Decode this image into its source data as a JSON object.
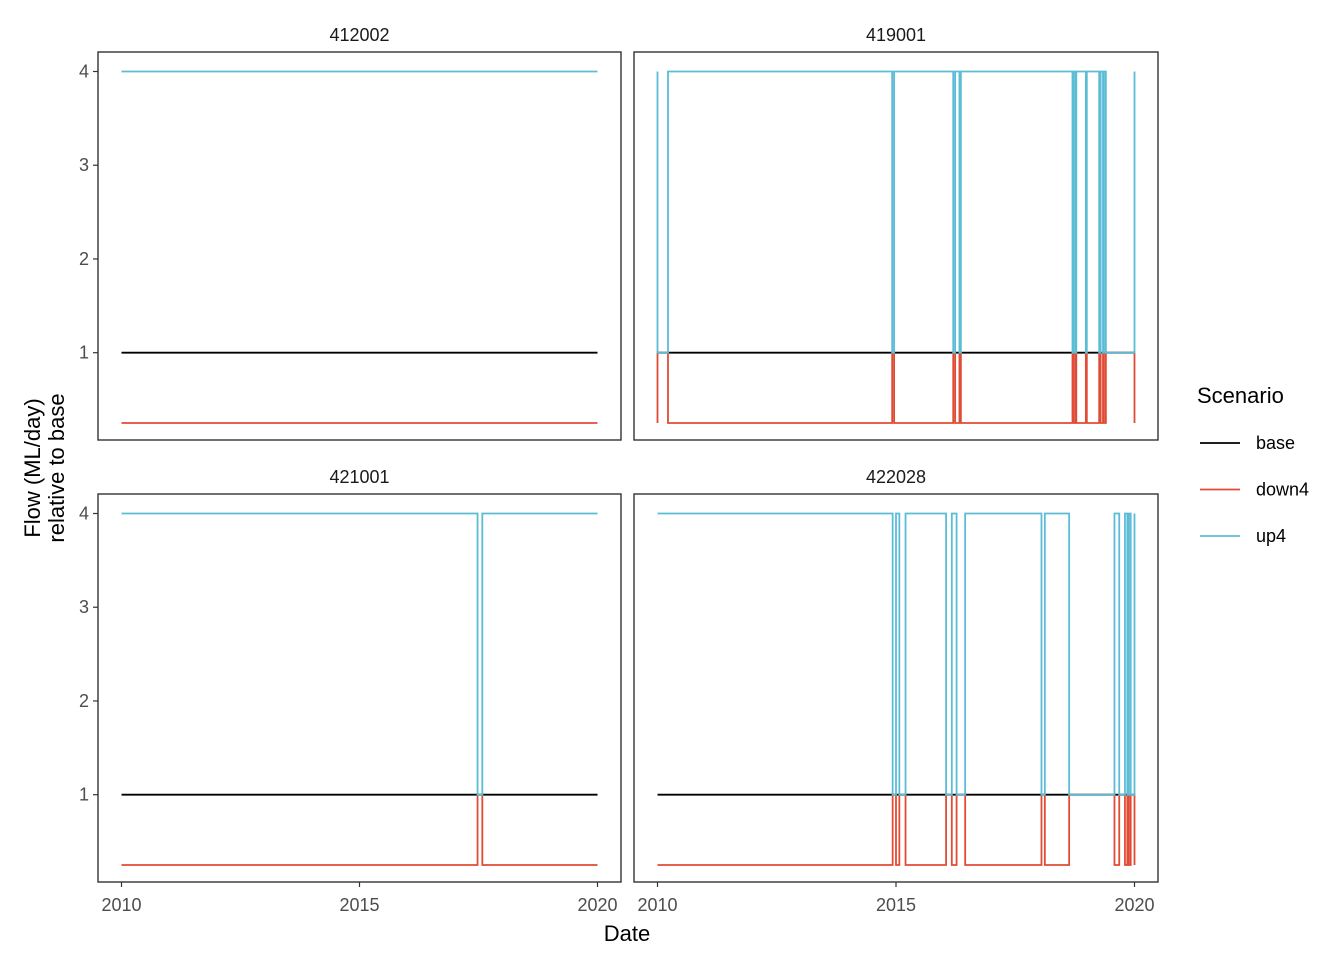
{
  "chart_data": {
    "type": "line",
    "xlabel": "Date",
    "ylabel_lines": [
      "Flow (ML/day)",
      "relative to base"
    ],
    "x_ticks": [
      "2010",
      "2015",
      "2020"
    ],
    "y_ticks": [
      "1",
      "2",
      "3",
      "4"
    ],
    "xlim": [
      2010,
      2020
    ],
    "ylim": [
      0.25,
      4
    ],
    "grid": false,
    "legend": {
      "title": "Scenario",
      "position": "right",
      "entries": [
        {
          "name": "base",
          "color": "#000000"
        },
        {
          "name": "down4",
          "color": "#E04B36"
        },
        {
          "name": "up4",
          "color": "#5BBCD6"
        }
      ]
    },
    "panels": [
      {
        "id": "412002",
        "x_end": 2020.0,
        "up4_low_intervals": [],
        "series": [
          {
            "name": "base",
            "x": [
              2010.0,
              2020.0
            ],
            "y": [
              1,
              1
            ]
          },
          {
            "name": "down4",
            "x": [
              2010.0,
              2020.0
            ],
            "y": [
              0.25,
              0.25
            ]
          },
          {
            "name": "up4",
            "x": [
              2010.0,
              2020.0
            ],
            "y": [
              4,
              4
            ]
          }
        ]
      },
      {
        "id": "419001",
        "x_end": 2020.0,
        "up4_low_intervals": [
          [
            2010.0,
            2010.22
          ],
          [
            2014.92,
            2014.96
          ],
          [
            2016.2,
            2016.24
          ],
          [
            2016.33,
            2016.36
          ],
          [
            2018.7,
            2018.72
          ],
          [
            2018.76,
            2018.78
          ],
          [
            2018.98,
            2019.0
          ],
          [
            2019.26,
            2019.29
          ],
          [
            2019.34,
            2019.36
          ],
          [
            2019.4,
            2020.0
          ]
        ],
        "series": [
          {
            "name": "base",
            "x": [
              2010.0,
              2020.0
            ],
            "y": [
              1,
              1
            ]
          },
          {
            "name": "down4",
            "note_x_from": "up4_low_intervals"
          },
          {
            "name": "up4",
            "note_x_from": "up4_low_intervals"
          }
        ]
      },
      {
        "id": "421001",
        "x_end": 2020.0,
        "up4_low_intervals": [
          [
            2017.48,
            2017.58
          ]
        ],
        "series": [
          {
            "name": "base",
            "x": [
              2010.0,
              2020.0
            ],
            "y": [
              1,
              1
            ]
          },
          {
            "name": "down4",
            "note_x_from": "up4_low_intervals"
          },
          {
            "name": "up4",
            "note_x_from": "up4_low_intervals"
          }
        ]
      },
      {
        "id": "422028",
        "x_end": 2020.0,
        "up4_low_intervals": [
          [
            2014.93,
            2015.0
          ],
          [
            2015.07,
            2015.2
          ],
          [
            2016.05,
            2016.17
          ],
          [
            2016.27,
            2016.45
          ],
          [
            2018.05,
            2018.12
          ],
          [
            2018.63,
            2019.58
          ],
          [
            2019.68,
            2019.8
          ],
          [
            2019.85,
            2019.88
          ],
          [
            2019.92,
            2020.0
          ]
        ],
        "series": [
          {
            "name": "base",
            "x": [
              2010.0,
              2020.0
            ],
            "y": [
              1,
              1
            ]
          },
          {
            "name": "down4",
            "note_x_from": "up4_low_intervals"
          },
          {
            "name": "up4",
            "note_x_from": "up4_low_intervals"
          }
        ]
      }
    ]
  }
}
